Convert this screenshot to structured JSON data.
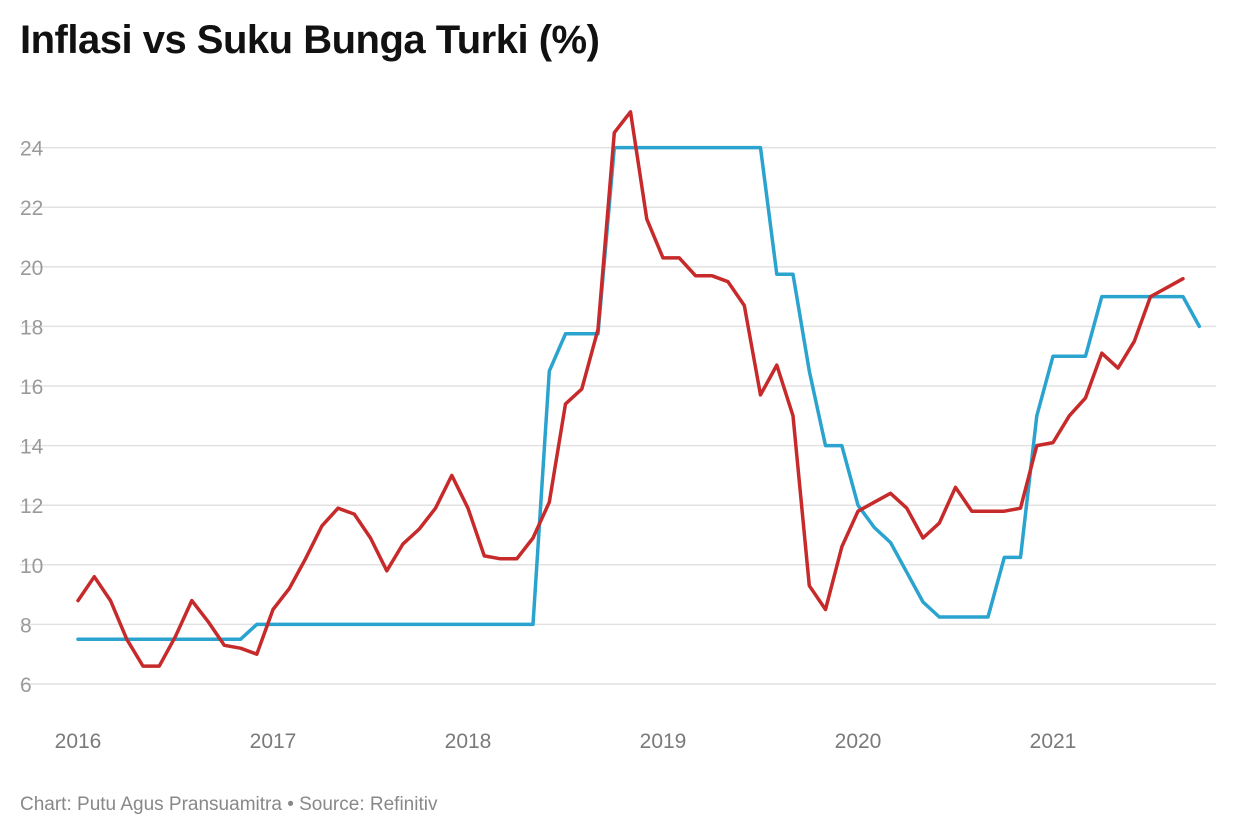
{
  "chart_data": {
    "type": "line",
    "title": "Inflasi vs Suku Bunga Turki (%)",
    "footer": "Chart: Putu Agus Pransuamitra • Source: Refinitiv",
    "xlabel": "",
    "ylabel": "",
    "ylim": [
      5,
      25.5
    ],
    "yticks": [
      6,
      8,
      10,
      12,
      14,
      16,
      18,
      20,
      22,
      24
    ],
    "xticks": [
      "2016",
      "2017",
      "2018",
      "2019",
      "2020",
      "2021"
    ],
    "x_range": [
      "2016-01",
      "2021-11"
    ],
    "grid": true,
    "legend": "none",
    "series": [
      {
        "color": "#2aa3cf",
        "points": [
          [
            "2016-01",
            7.5
          ],
          [
            "2016-11",
            7.5
          ],
          [
            "2016-12",
            8.0
          ],
          [
            "2018-05",
            8.0
          ],
          [
            "2018-06",
            16.5
          ],
          [
            "2018-07",
            17.75
          ],
          [
            "2018-09",
            17.75
          ],
          [
            "2018-10",
            24.0
          ],
          [
            "2019-07",
            24.0
          ],
          [
            "2019-08",
            19.75
          ],
          [
            "2019-09",
            19.75
          ],
          [
            "2019-10",
            16.5
          ],
          [
            "2019-11",
            14.0
          ],
          [
            "2019-12",
            14.0
          ],
          [
            "2020-01",
            12.0
          ],
          [
            "2020-02",
            11.25
          ],
          [
            "2020-03",
            10.75
          ],
          [
            "2020-04",
            9.75
          ],
          [
            "2020-05",
            8.75
          ],
          [
            "2020-06",
            8.25
          ],
          [
            "2020-09",
            8.25
          ],
          [
            "2020-10",
            10.25
          ],
          [
            "2020-11",
            10.25
          ],
          [
            "2020-12",
            15.0
          ],
          [
            "2021-01",
            17.0
          ],
          [
            "2021-03",
            17.0
          ],
          [
            "2021-04",
            19.0
          ],
          [
            "2021-09",
            19.0
          ],
          [
            "2021-10",
            18.0
          ]
        ]
      },
      {
        "color": "#c72a2a",
        "points": [
          [
            "2016-01",
            8.8
          ],
          [
            "2016-02",
            9.6
          ],
          [
            "2016-03",
            8.8
          ],
          [
            "2016-04",
            7.5
          ],
          [
            "2016-05",
            6.6
          ],
          [
            "2016-06",
            6.6
          ],
          [
            "2016-07",
            7.6
          ],
          [
            "2016-08",
            8.8
          ],
          [
            "2016-09",
            8.1
          ],
          [
            "2016-10",
            7.3
          ],
          [
            "2016-11",
            7.2
          ],
          [
            "2016-12",
            7.0
          ],
          [
            "2017-01",
            8.5
          ],
          [
            "2017-02",
            9.2
          ],
          [
            "2017-03",
            10.2
          ],
          [
            "2017-04",
            11.3
          ],
          [
            "2017-05",
            11.9
          ],
          [
            "2017-06",
            11.7
          ],
          [
            "2017-07",
            10.9
          ],
          [
            "2017-08",
            9.8
          ],
          [
            "2017-09",
            10.7
          ],
          [
            "2017-10",
            11.2
          ],
          [
            "2017-11",
            11.9
          ],
          [
            "2017-12",
            13.0
          ],
          [
            "2018-01",
            11.9
          ],
          [
            "2018-02",
            10.3
          ],
          [
            "2018-03",
            10.2
          ],
          [
            "2018-04",
            10.2
          ],
          [
            "2018-05",
            10.9
          ],
          [
            "2018-06",
            12.1
          ],
          [
            "2018-07",
            15.4
          ],
          [
            "2018-08",
            15.9
          ],
          [
            "2018-09",
            17.9
          ],
          [
            "2018-10",
            24.5
          ],
          [
            "2018-11",
            25.2
          ],
          [
            "2018-12",
            21.6
          ],
          [
            "2019-01",
            20.3
          ],
          [
            "2019-02",
            20.3
          ],
          [
            "2019-03",
            19.7
          ],
          [
            "2019-04",
            19.7
          ],
          [
            "2019-05",
            19.5
          ],
          [
            "2019-06",
            18.7
          ],
          [
            "2019-07",
            15.7
          ],
          [
            "2019-08",
            16.7
          ],
          [
            "2019-09",
            15.0
          ],
          [
            "2019-10",
            9.3
          ],
          [
            "2019-11",
            8.5
          ],
          [
            "2019-12",
            10.6
          ],
          [
            "2020-01",
            11.8
          ],
          [
            "2020-02",
            12.1
          ],
          [
            "2020-03",
            12.4
          ],
          [
            "2020-04",
            11.9
          ],
          [
            "2020-05",
            10.9
          ],
          [
            "2020-06",
            11.4
          ],
          [
            "2020-07",
            12.6
          ],
          [
            "2020-08",
            11.8
          ],
          [
            "2020-09",
            11.8
          ],
          [
            "2020-10",
            11.8
          ],
          [
            "2020-11",
            11.9
          ],
          [
            "2020-12",
            14.0
          ],
          [
            "2021-01",
            14.1
          ],
          [
            "2021-02",
            15.0
          ],
          [
            "2021-03",
            15.6
          ],
          [
            "2021-04",
            17.1
          ],
          [
            "2021-05",
            16.6
          ],
          [
            "2021-06",
            17.5
          ],
          [
            "2021-07",
            19.0
          ],
          [
            "2021-08",
            19.3
          ],
          [
            "2021-09",
            19.6
          ]
        ]
      }
    ]
  }
}
